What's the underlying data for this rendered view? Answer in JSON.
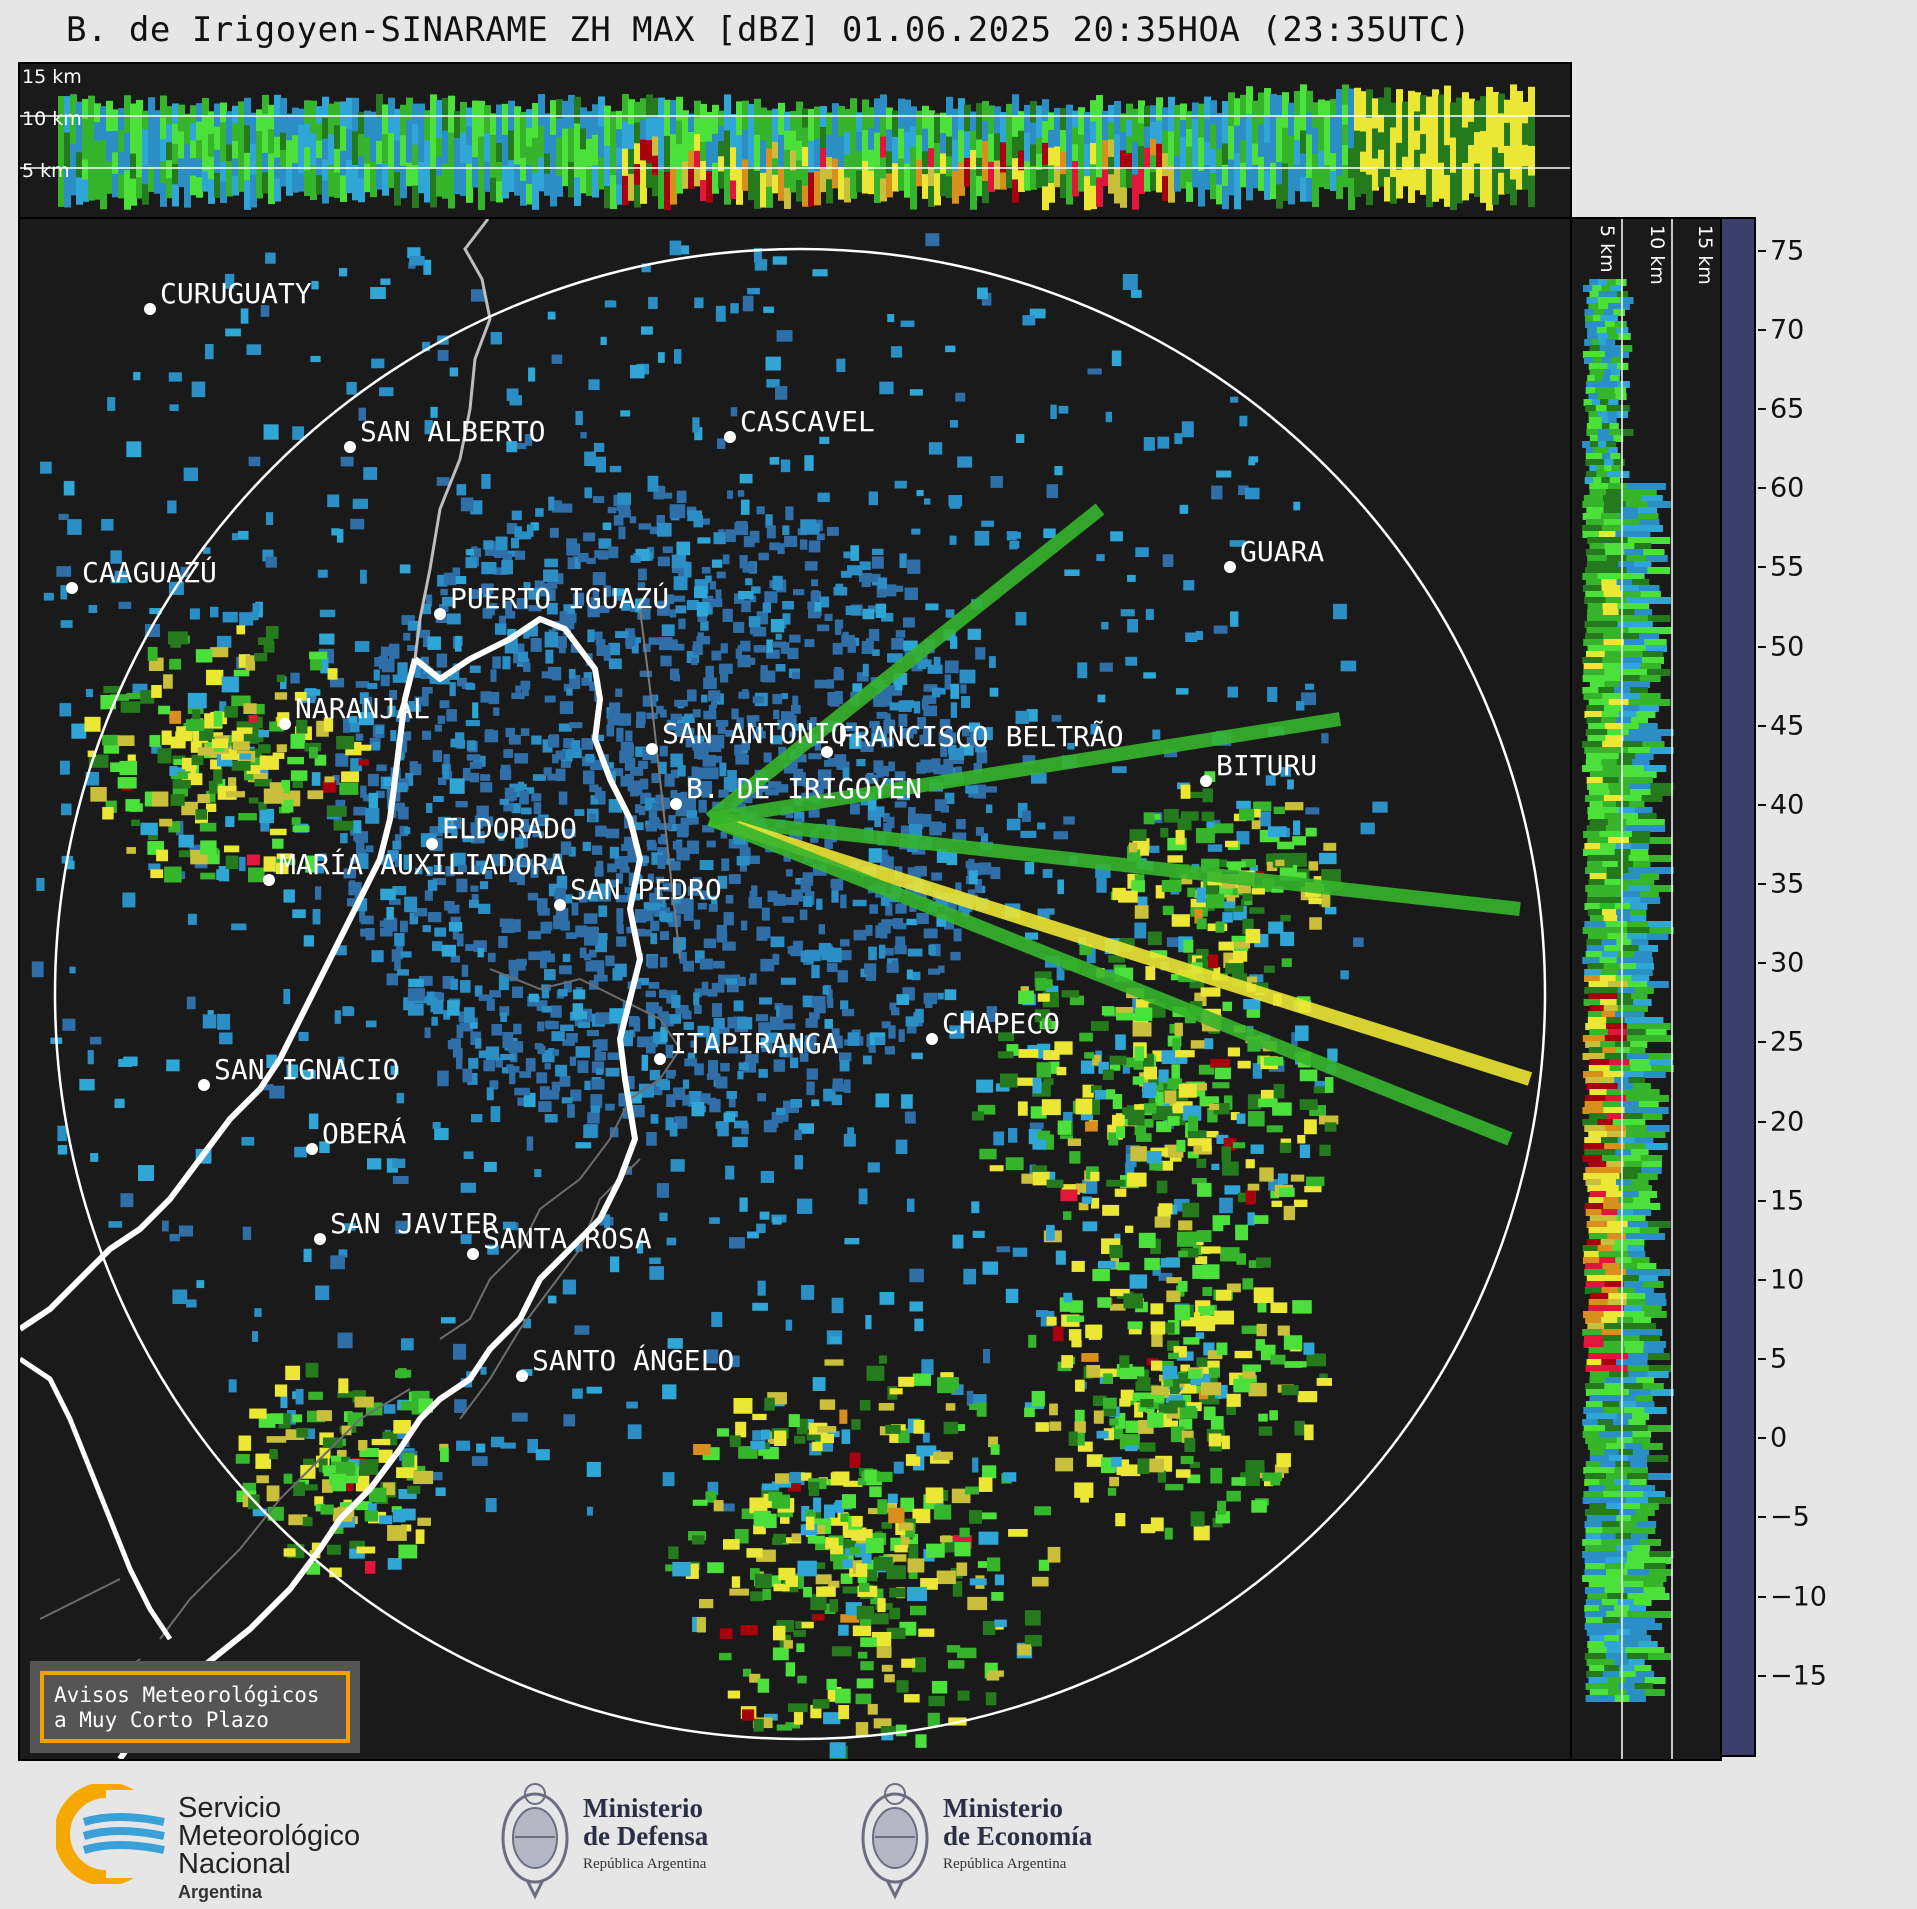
{
  "title": "B. de Irigoyen-SINARAME ZH MAX [dBZ] 01.06.2025 20:35HOA (23:35UTC)",
  "top_panel": {
    "height_labels": [
      "15 km",
      "10 km",
      "5 km"
    ]
  },
  "side_panel": {
    "height_labels": [
      "5 km",
      "10 km",
      "15 km"
    ]
  },
  "colorbar": {
    "unit": "dBZ",
    "ticks": [
      "75",
      "70",
      "65",
      "60",
      "55",
      "50",
      "45",
      "40",
      "35",
      "30",
      "25",
      "20",
      "15",
      "10",
      "5",
      "0",
      "−5",
      "−10",
      "−15"
    ],
    "tick_values": [
      75,
      70,
      65,
      60,
      55,
      50,
      45,
      40,
      35,
      30,
      25,
      20,
      15,
      10,
      5,
      0,
      -5,
      -10,
      -15
    ],
    "range": [
      -20,
      77
    ],
    "colors": [
      {
        "from": -20,
        "color": "#3d3f6b"
      },
      {
        "from": -10,
        "color": "#34528a"
      },
      {
        "from": 0,
        "color": "#2f6ea6"
      },
      {
        "from": 10,
        "color": "#2b8ec4"
      },
      {
        "from": 15,
        "color": "#2fa6d6"
      },
      {
        "from": 18,
        "color": "#4be03a"
      },
      {
        "from": 22,
        "color": "#36b52c"
      },
      {
        "from": 26,
        "color": "#257a1e"
      },
      {
        "from": 30,
        "color": "#ece634"
      },
      {
        "from": 35,
        "color": "#c9bf3a"
      },
      {
        "from": 38,
        "color": "#d98f1c"
      },
      {
        "from": 42,
        "color": "#e0173a"
      },
      {
        "from": 45,
        "color": "#a8000c"
      },
      {
        "from": 50,
        "color": "#c2085c"
      },
      {
        "from": 53,
        "color": "#e31fd6"
      },
      {
        "from": 56,
        "color": "#8e0aa0"
      },
      {
        "from": 59,
        "color": "#ffffff"
      },
      {
        "from": 61,
        "color": "#d8f2e8"
      },
      {
        "from": 65,
        "color": "#b0ebd4"
      },
      {
        "from": 70,
        "color": "#8fe0c0"
      }
    ]
  },
  "map": {
    "cities": [
      {
        "name": "CURUGUATY"
      },
      {
        "name": "SAN ALBERTO"
      },
      {
        "name": "CASCAVEL"
      },
      {
        "name": "CAAGUAZÚ"
      },
      {
        "name": "PUERTO IGUAZÚ"
      },
      {
        "name": "GUARA"
      },
      {
        "name": "NARANJAL"
      },
      {
        "name": "SAN ANTONIO"
      },
      {
        "name": "FRANCISCO BELTRÃO"
      },
      {
        "name": "BITURU"
      },
      {
        "name": "B. DE IRIGOYEN"
      },
      {
        "name": "ELDORADO"
      },
      {
        "name": "MARÍA AUXILIADORA"
      },
      {
        "name": "SAN PEDRO"
      },
      {
        "name": "CHAPECO"
      },
      {
        "name": "ITAPIRANGA"
      },
      {
        "name": "SAN IGNACIO"
      },
      {
        "name": "OBERÁ"
      },
      {
        "name": "SAN JAVIER"
      },
      {
        "name": "SANTA ROSA"
      },
      {
        "name": "SANTO ÁNGELO"
      }
    ]
  },
  "notice": {
    "line1": "Avisos Meteorológicos",
    "line2": "a Muy Corto Plazo"
  },
  "footer": {
    "smn": {
      "line1": "Servicio",
      "line2": "Meteorológico",
      "line3": "Nacional",
      "line4": "Argentina"
    },
    "defensa": {
      "line1": "Ministerio",
      "line2": "de Defensa",
      "line3": "República Argentina"
    },
    "economia": {
      "line1": "Ministerio",
      "line2": "de Economía",
      "line3": "República Argentina"
    }
  }
}
